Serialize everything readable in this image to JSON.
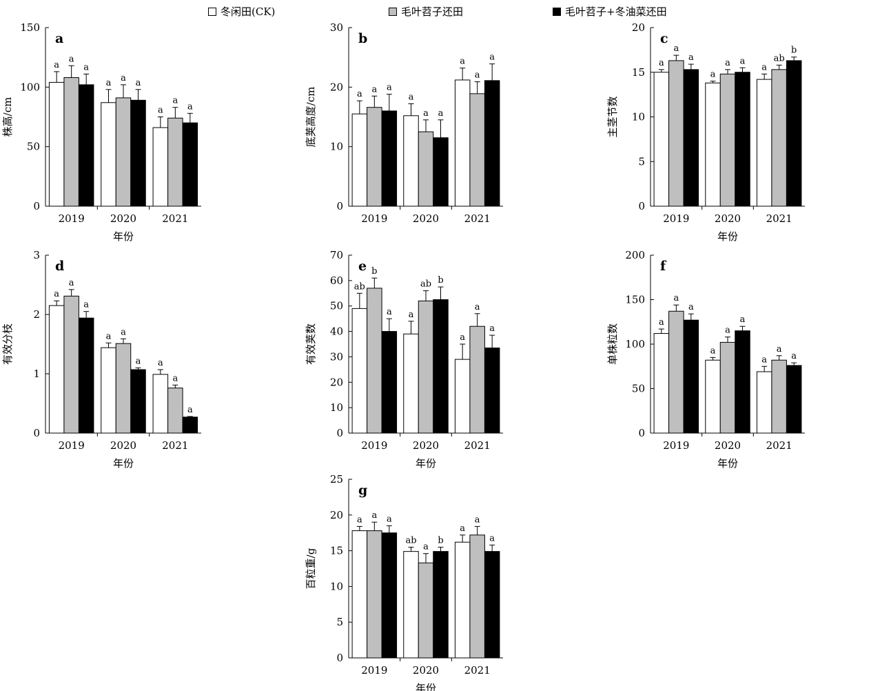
{
  "legend": {
    "items": [
      {
        "label": "冬闲田(CK)",
        "color": "#ffffff"
      },
      {
        "label": "毛叶苕子还田",
        "color": "#bfbfbf"
      },
      {
        "label": "毛叶苕子+冬油菜还田",
        "color": "#000000"
      }
    ]
  },
  "chart_data": [
    {
      "type": "bar",
      "panel": "a",
      "xlabel": "年份",
      "ylabel": "株高/cm",
      "categories": [
        "2019",
        "2020",
        "2021"
      ],
      "ylim": [
        0,
        150
      ],
      "yticks": [
        0,
        50,
        100,
        150
      ],
      "series": [
        {
          "name": "冬闲田(CK)",
          "values": [
            104,
            87,
            66
          ],
          "errors": [
            9,
            11,
            9
          ],
          "labels": [
            "a",
            "a",
            "a"
          ]
        },
        {
          "name": "毛叶苕子还田",
          "values": [
            108,
            91,
            74
          ],
          "errors": [
            10,
            11,
            9
          ],
          "labels": [
            "a",
            "a",
            "a"
          ]
        },
        {
          "name": "毛叶苕子+冬油菜还田",
          "values": [
            102,
            89,
            70
          ],
          "errors": [
            9,
            9,
            8
          ],
          "labels": [
            "a",
            "a",
            "a"
          ]
        }
      ]
    },
    {
      "type": "bar",
      "panel": "b",
      "xlabel": "",
      "ylabel": "底荚高度/cm",
      "categories": [
        "2019",
        "2020",
        "2021"
      ],
      "ylim": [
        0,
        30
      ],
      "yticks": [
        0,
        10,
        20,
        30
      ],
      "series": [
        {
          "name": "冬闲田(CK)",
          "values": [
            15.5,
            15.2,
            21.2
          ],
          "errors": [
            2.2,
            2.0,
            2.0
          ],
          "labels": [
            "a",
            "a",
            "a"
          ]
        },
        {
          "name": "毛叶苕子还田",
          "values": [
            16.6,
            12.5,
            18.9
          ],
          "errors": [
            1.9,
            2.0,
            2.0
          ],
          "labels": [
            "a",
            "a",
            "a"
          ]
        },
        {
          "name": "毛叶苕子+冬油菜还田",
          "values": [
            16.0,
            11.5,
            21.1
          ],
          "errors": [
            2.8,
            3.0,
            2.8
          ],
          "labels": [
            "a",
            "a",
            "a"
          ]
        }
      ]
    },
    {
      "type": "bar",
      "panel": "c",
      "xlabel": "年份",
      "ylabel": "主茎节数",
      "categories": [
        "2019",
        "2020",
        "2021"
      ],
      "ylim": [
        0,
        20
      ],
      "yticks": [
        0,
        5,
        10,
        15,
        20
      ],
      "series": [
        {
          "name": "冬闲田(CK)",
          "values": [
            15.0,
            13.8,
            14.2
          ],
          "errors": [
            0.3,
            0.2,
            0.6
          ],
          "labels": [
            "a",
            "a",
            "a"
          ]
        },
        {
          "name": "毛叶苕子还田",
          "values": [
            16.3,
            14.8,
            15.3
          ],
          "errors": [
            0.6,
            0.5,
            0.5
          ],
          "labels": [
            "a",
            "a",
            "ab"
          ]
        },
        {
          "name": "毛叶苕子+冬油菜还田",
          "values": [
            15.3,
            15.0,
            16.3
          ],
          "errors": [
            0.6,
            0.5,
            0.4
          ],
          "labels": [
            "a",
            "a",
            "b"
          ]
        }
      ]
    },
    {
      "type": "bar",
      "panel": "d",
      "xlabel": "年份",
      "ylabel": "有效分枝",
      "categories": [
        "2019",
        "2020",
        "2021"
      ],
      "ylim": [
        0,
        3
      ],
      "yticks": [
        0,
        1,
        2,
        3
      ],
      "series": [
        {
          "name": "冬闲田(CK)",
          "values": [
            2.15,
            1.44,
            0.99
          ],
          "errors": [
            0.08,
            0.08,
            0.08
          ],
          "labels": [
            "a",
            "a",
            "a"
          ]
        },
        {
          "name": "毛叶苕子还田",
          "values": [
            2.31,
            1.51,
            0.76
          ],
          "errors": [
            0.11,
            0.08,
            0.05
          ],
          "labels": [
            "a",
            "a",
            "a"
          ]
        },
        {
          "name": "毛叶苕子+冬油菜还田",
          "values": [
            1.94,
            1.07,
            0.27
          ],
          "errors": [
            0.11,
            0.03,
            0.01
          ],
          "labels": [
            "a",
            "a",
            "a"
          ]
        }
      ]
    },
    {
      "type": "bar",
      "panel": "e",
      "xlabel": "年份",
      "ylabel": "有效荚数",
      "categories": [
        "2019",
        "2020",
        "2021"
      ],
      "ylim": [
        0,
        70
      ],
      "yticks": [
        0,
        10,
        20,
        30,
        40,
        50,
        60,
        70
      ],
      "series": [
        {
          "name": "冬闲田(CK)",
          "values": [
            49,
            39,
            29
          ],
          "errors": [
            6,
            5,
            6
          ],
          "labels": [
            "ab",
            "a",
            "a"
          ]
        },
        {
          "name": "毛叶苕子还田",
          "values": [
            57,
            52,
            42
          ],
          "errors": [
            4,
            4,
            5
          ],
          "labels": [
            "b",
            "ab",
            "a"
          ]
        },
        {
          "name": "毛叶苕子+冬油菜还田",
          "values": [
            40,
            52.5,
            33.5
          ],
          "errors": [
            5,
            5,
            5
          ],
          "labels": [
            "a",
            "b",
            "a"
          ]
        }
      ]
    },
    {
      "type": "bar",
      "panel": "f",
      "xlabel": "年份",
      "ylabel": "单株粒数",
      "categories": [
        "2019",
        "2020",
        "2021"
      ],
      "ylim": [
        0,
        200
      ],
      "yticks": [
        0,
        50,
        100,
        150,
        200
      ],
      "series": [
        {
          "name": "冬闲田(CK)",
          "values": [
            112,
            82,
            69
          ],
          "errors": [
            5,
            3,
            6
          ],
          "labels": [
            "a",
            "a",
            "a"
          ]
        },
        {
          "name": "毛叶苕子还田",
          "values": [
            137,
            102,
            82
          ],
          "errors": [
            7,
            6,
            5
          ],
          "labels": [
            "a",
            "a",
            "a"
          ]
        },
        {
          "name": "毛叶苕子+冬油菜还田",
          "values": [
            127,
            115,
            76
          ],
          "errors": [
            7,
            5,
            3
          ],
          "labels": [
            "a",
            "a",
            "a"
          ]
        }
      ]
    },
    {
      "type": "bar",
      "panel": "g",
      "xlabel": "年份",
      "ylabel": "百粒重/g",
      "categories": [
        "2019",
        "2020",
        "2021"
      ],
      "ylim": [
        0,
        25
      ],
      "yticks": [
        0,
        5,
        10,
        15,
        20,
        25
      ],
      "series": [
        {
          "name": "冬闲田(CK)",
          "values": [
            17.8,
            14.9,
            16.2
          ],
          "errors": [
            0.6,
            0.6,
            1.0
          ],
          "labels": [
            "a",
            "ab",
            "a"
          ]
        },
        {
          "name": "毛叶苕子还田",
          "values": [
            17.8,
            13.3,
            17.2
          ],
          "errors": [
            1.2,
            1.3,
            1.2
          ],
          "labels": [
            "a",
            "a",
            "a"
          ]
        },
        {
          "name": "毛叶苕子+冬油菜还田",
          "values": [
            17.5,
            14.9,
            14.9
          ],
          "errors": [
            1.0,
            0.6,
            0.9
          ],
          "labels": [
            "a",
            "b",
            "a"
          ]
        }
      ]
    }
  ]
}
